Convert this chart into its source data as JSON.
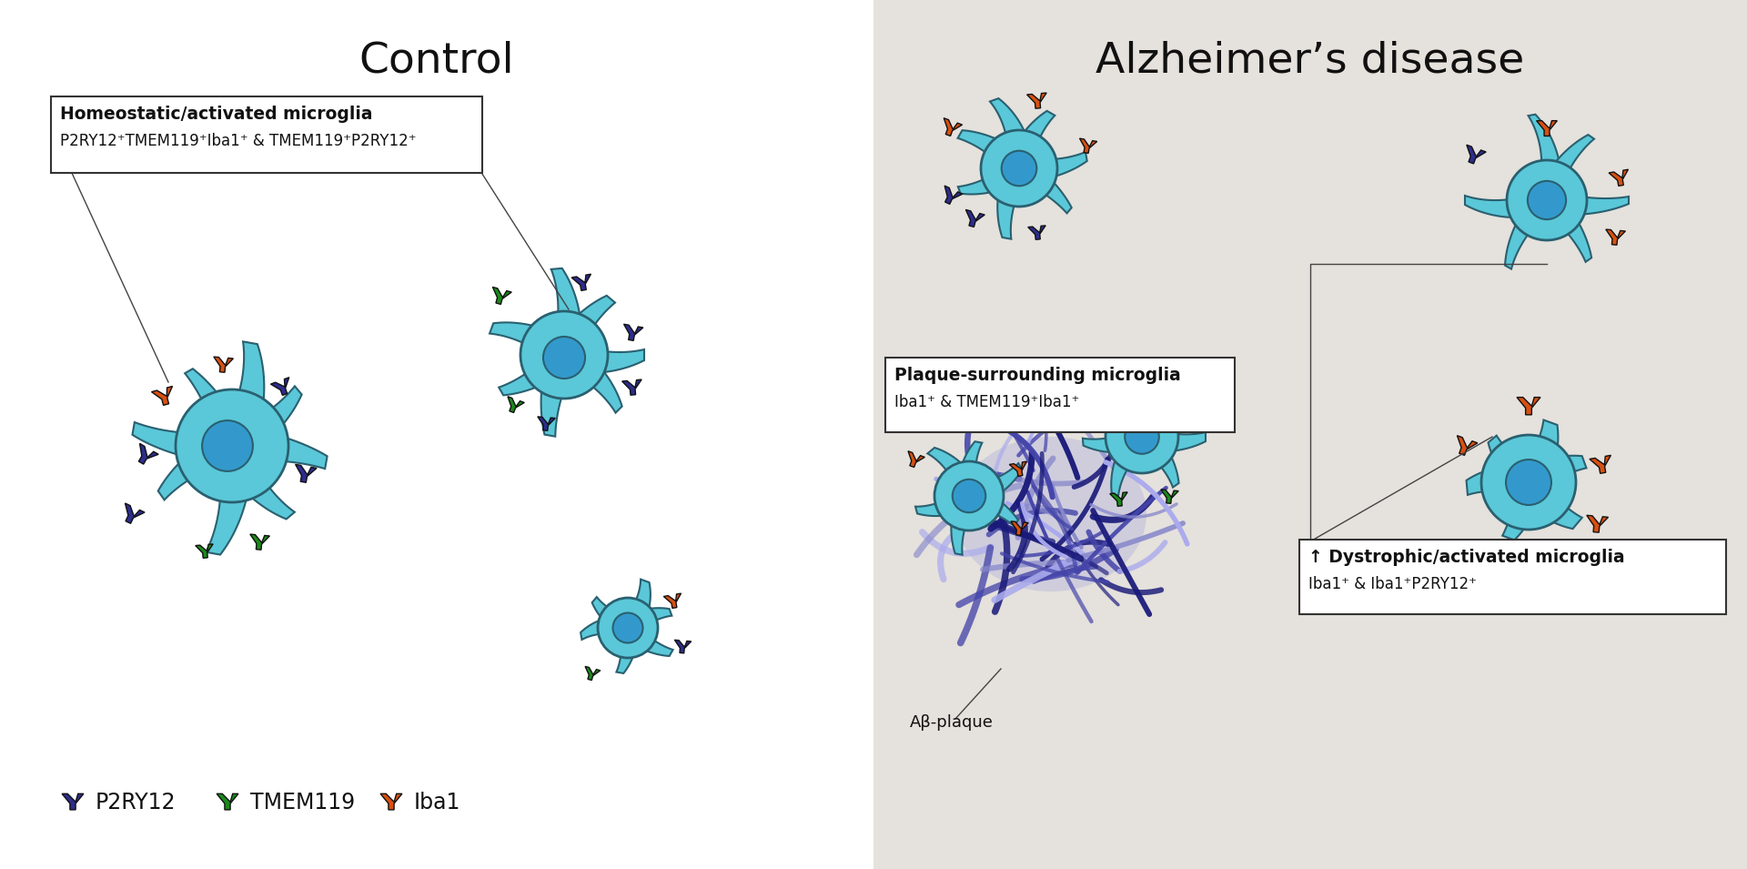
{
  "bg_left": "#ffffff",
  "bg_right": "#e5e1dc",
  "cell_body_color": "#5ac8d8",
  "cell_body_color2": "#60cce0",
  "cell_nucleus_color": "#3399cc",
  "cell_outline_color": "#2a9ab0",
  "p2ry12_color": "#2d2d8c",
  "tmem119_color": "#1a8a1a",
  "iba1_color": "#d85010",
  "plaque_dark": "#1a1a7a",
  "plaque_mid": "#4444aa",
  "plaque_light": "#8888cc",
  "title_left": "Control",
  "title_right": "Alzheimer’s disease",
  "box1_title": "Homeostatic/activated microglia",
  "box1_text": "P2RY12⁺TMEM119⁺Iba1⁺ & TMEM119⁺P2RY12⁺",
  "box2_title": "Plaque-surrounding microglia",
  "box2_text": "Iba1⁺ & TMEM119⁺Iba1⁺",
  "box3_title": "↑ Dystrophic/activated microglia",
  "box3_text": "Iba1⁺ & Iba1⁺P2RY12⁺",
  "abplaque_label": "Aβ-plaque",
  "legend_p2ry12": "P2RY12",
  "legend_tmem119": "TMEM119",
  "legend_iba1": "Iba1"
}
